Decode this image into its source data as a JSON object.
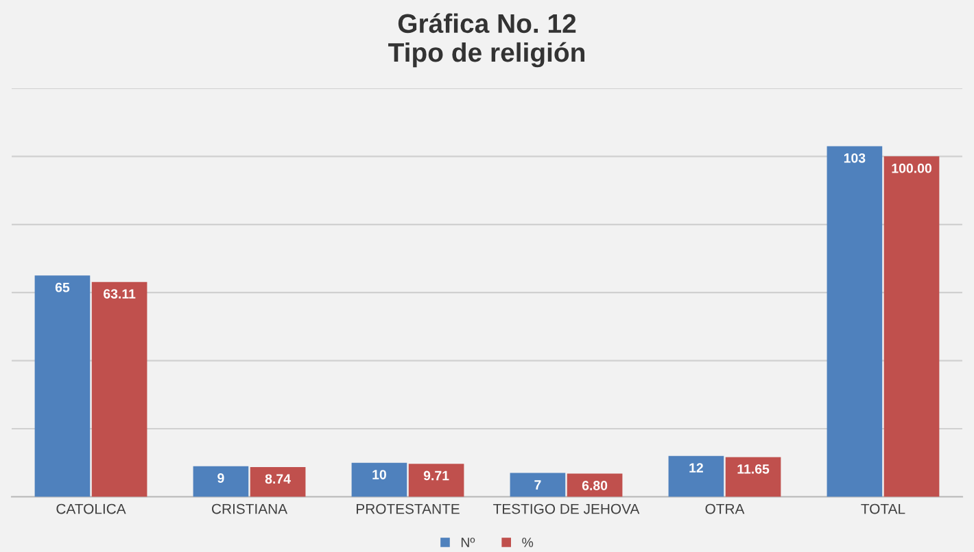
{
  "chart_data": {
    "type": "bar",
    "title": "Gráfica No. 12\nTipo de religión",
    "categories": [
      "CATOLICA",
      "CRISTIANA",
      "PROTESTANTE",
      "TESTIGO DE JEHOVA",
      "OTRA",
      "TOTAL"
    ],
    "series": [
      {
        "name": "Nº",
        "color": "#4f81bd",
        "values": [
          65,
          9,
          10,
          7,
          12,
          103
        ],
        "value_labels": [
          "65",
          "9",
          "10",
          "7",
          "12",
          "103"
        ]
      },
      {
        "name": "%",
        "color": "#c0504d",
        "values": [
          63.11,
          8.74,
          9.71,
          6.8,
          11.65,
          100.0
        ],
        "value_labels": [
          "63.11",
          "8.74",
          "9.71",
          "6.80",
          "11.65",
          "100.00"
        ]
      }
    ],
    "ylim": [
      0,
      120
    ],
    "yticks": [
      {
        "value": 0,
        "label": null
      },
      {
        "value": 20,
        "label": null
      },
      {
        "value": 40,
        "label": null
      },
      {
        "value": 60,
        "label": null
      },
      {
        "value": 80,
        "label": null
      },
      {
        "value": 100,
        "label": null
      },
      {
        "value": 120,
        "label": null
      }
    ],
    "tick_labels": "x",
    "grid": "y",
    "legend": "bottom"
  }
}
